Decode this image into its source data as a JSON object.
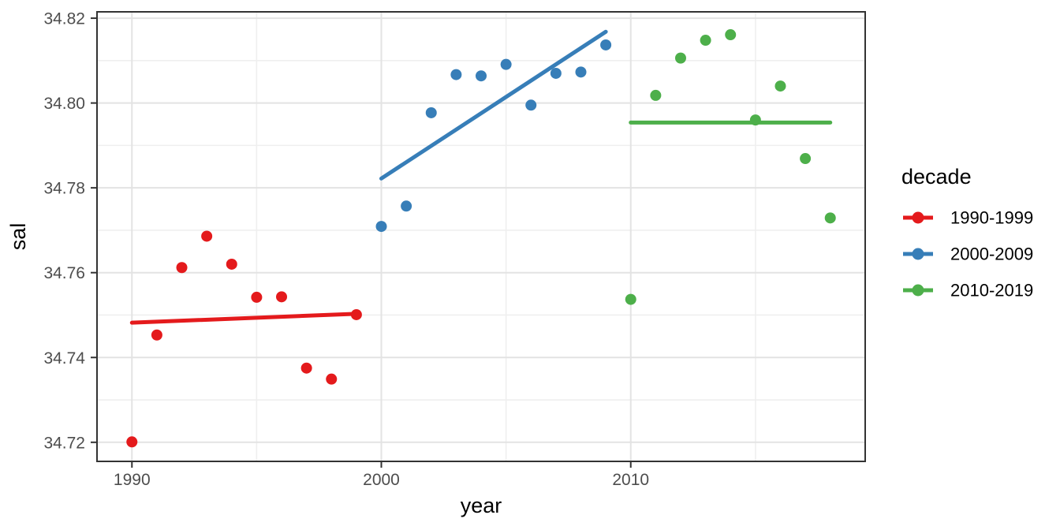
{
  "chart_data": {
    "type": "scatter",
    "title": "",
    "xlabel": "year",
    "ylabel": "sal",
    "x_domain": [
      1988.6,
      2019.4
    ],
    "y_domain": [
      34.7155,
      34.8215
    ],
    "x_major_ticks": [
      1990,
      2000,
      2010
    ],
    "x_minor_gridlines": [
      1995,
      2005,
      2015
    ],
    "y_major_ticks": [
      34.72,
      34.74,
      34.76,
      34.78,
      34.8,
      34.82
    ],
    "y_minor_gridlines": [
      34.73,
      34.75,
      34.77,
      34.79,
      34.81
    ],
    "grid": true,
    "legend": {
      "title": "decade",
      "position": "right"
    },
    "series": [
      {
        "name": "1990-1999",
        "color": "#E41A1C",
        "x": [
          1990,
          1991,
          1992,
          1993,
          1994,
          1995,
          1996,
          1997,
          1998,
          1999
        ],
        "y": [
          34.7201,
          34.7453,
          34.7612,
          34.7686,
          34.762,
          34.7542,
          34.7543,
          34.7375,
          34.7349,
          34.7501
        ],
        "trend": [
          [
            1990,
            34.7482
          ],
          [
            1999,
            34.7503
          ]
        ]
      },
      {
        "name": "2000-2009",
        "color": "#377EB8",
        "x": [
          2000,
          2001,
          2002,
          2003,
          2004,
          2005,
          2006,
          2007,
          2008,
          2009
        ],
        "y": [
          34.7709,
          34.7757,
          34.7977,
          34.8067,
          34.8064,
          34.8091,
          34.7995,
          34.807,
          34.8073,
          34.8137
        ],
        "trend": [
          [
            2000,
            34.7822
          ],
          [
            2009,
            34.8168
          ]
        ]
      },
      {
        "name": "2010-2019",
        "color": "#4DAF4A",
        "x": [
          2010,
          2011,
          2012,
          2013,
          2014,
          2015,
          2016,
          2017,
          2018
        ],
        "y": [
          34.7537,
          34.8018,
          34.8106,
          34.8148,
          34.8161,
          34.796,
          34.804,
          34.7869,
          34.7729
        ],
        "trend": [
          [
            2010,
            34.7954
          ],
          [
            2018,
            34.7954
          ]
        ]
      }
    ],
    "style_colors": {
      "panel_background": "#ffffff",
      "panel_border": "#333333",
      "grid_major": "#e3e3e3",
      "grid_minor": "#efefef",
      "tick_mark": "#333333",
      "tick_text": "#4d4d4d"
    }
  }
}
